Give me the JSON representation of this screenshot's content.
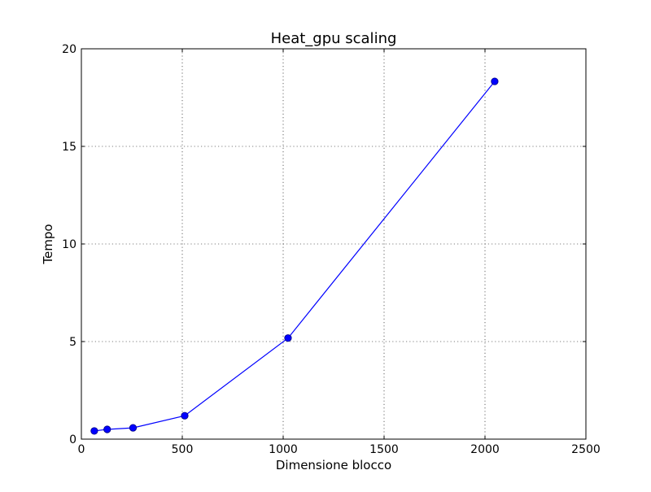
{
  "colors": {
    "background": "#ffffff",
    "axes": "#000000",
    "grid": "#000000",
    "series": "#0000ff"
  },
  "chart_data": {
    "type": "line",
    "title": "Heat_gpu scaling",
    "xlabel": "Dimensione blocco",
    "ylabel": "Tempo",
    "xlim": [
      0,
      2500
    ],
    "ylim": [
      0,
      20
    ],
    "xticks": [
      0,
      500,
      1000,
      1500,
      2000,
      2500
    ],
    "yticks": [
      0,
      5,
      10,
      15,
      20
    ],
    "xtick_labels": [
      "0",
      "500",
      "1000",
      "1500",
      "2000",
      "2500"
    ],
    "ytick_labels": [
      "0",
      "5",
      "10",
      "15",
      "20"
    ],
    "grid": true,
    "grid_style": "dotted",
    "series": [
      {
        "color": "#0000ff",
        "marker": "circle",
        "x": [
          64,
          128,
          256,
          512,
          1024,
          2048
        ],
        "y": [
          0.42,
          0.5,
          0.58,
          1.2,
          5.18,
          18.33
        ]
      }
    ]
  }
}
